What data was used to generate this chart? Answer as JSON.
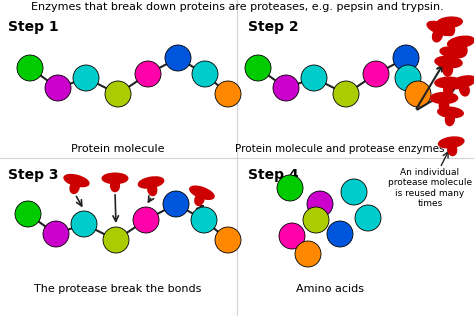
{
  "title": "Enzymes that break down proteins are proteases, e.g. pepsin and trypsin.",
  "step_labels": [
    "Step 1",
    "Step 2",
    "Step 3",
    "Step 4"
  ],
  "protein_colors": [
    "#00cc00",
    "#cc00cc",
    "#00cccc",
    "#aacc00",
    "#ff00aa",
    "#0055dd",
    "#00cccc",
    "#ff8800"
  ],
  "caption1": "Protein molecule",
  "caption2": "Protein molecule and protease enzymes",
  "caption3": "The protease break the bonds",
  "caption4": "Amino acids",
  "caption4b": "An individual\nprotease molecule\nis reused many\ntimes",
  "enzyme_color": "#cc0000",
  "bg_color": "#ffffff",
  "line_color": "#222222"
}
